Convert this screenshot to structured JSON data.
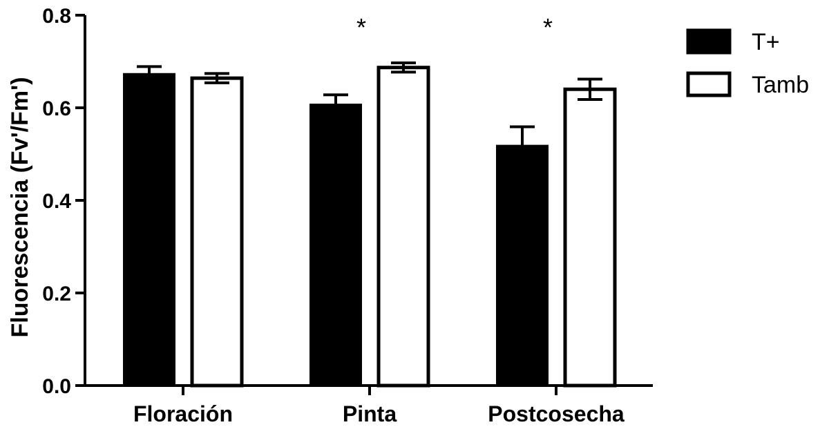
{
  "chart_data": {
    "type": "bar",
    "categories": [
      "Floración",
      "Pinta",
      "Postcosecha"
    ],
    "series": [
      {
        "name": "T+",
        "values": [
          0.672,
          0.606,
          0.517
        ],
        "errors": [
          0.017,
          0.022,
          0.042
        ],
        "fill": "#000000"
      },
      {
        "name": "Tamb",
        "values": [
          0.664,
          0.687,
          0.64
        ],
        "errors": [
          0.01,
          0.01,
          0.022
        ],
        "fill": "#ffffff"
      }
    ],
    "ylabel": "Fluorescencia (Fv'/Fm')",
    "xlabel": "",
    "ylim": [
      0,
      0.8
    ],
    "yticks": [
      "0.0",
      "0.2",
      "0.4",
      "0.6",
      "0.8"
    ],
    "annotations": [
      "",
      "*",
      "*"
    ],
    "legend_position": "top-right",
    "grid": false
  }
}
